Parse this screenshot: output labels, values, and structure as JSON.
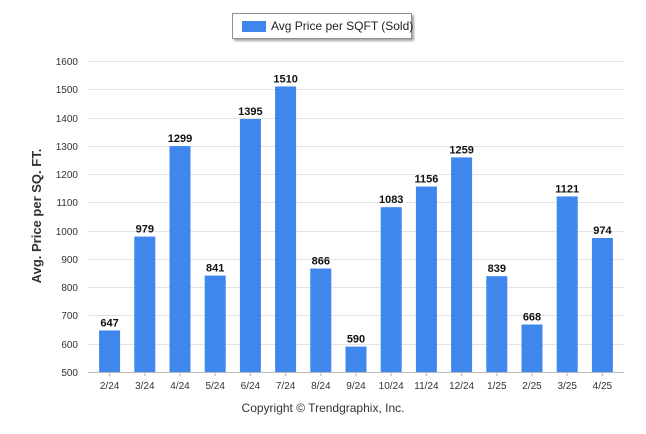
{
  "chart_data": {
    "type": "bar",
    "legend": "Avg Price per SQFT (Sold)",
    "legend_position": "top-center",
    "ylabel": "Avg. Price per SQ. FT.",
    "xlabel": "",
    "ylim": [
      500,
      1600
    ],
    "yticks": [
      500,
      600,
      700,
      800,
      900,
      1000,
      1100,
      1200,
      1300,
      1400,
      1500,
      1600
    ],
    "grid": true,
    "bar_color": "#3f86ed",
    "categories": [
      "2/24",
      "3/24",
      "4/24",
      "5/24",
      "6/24",
      "7/24",
      "8/24",
      "9/24",
      "10/24",
      "11/24",
      "12/24",
      "1/25",
      "2/25",
      "3/25",
      "4/25"
    ],
    "values": [
      647,
      979,
      1299,
      841,
      1395,
      1510,
      866,
      590,
      1083,
      1156,
      1259,
      839,
      668,
      1121,
      974
    ]
  },
  "footer": "Copyright © Trendgraphix, Inc."
}
